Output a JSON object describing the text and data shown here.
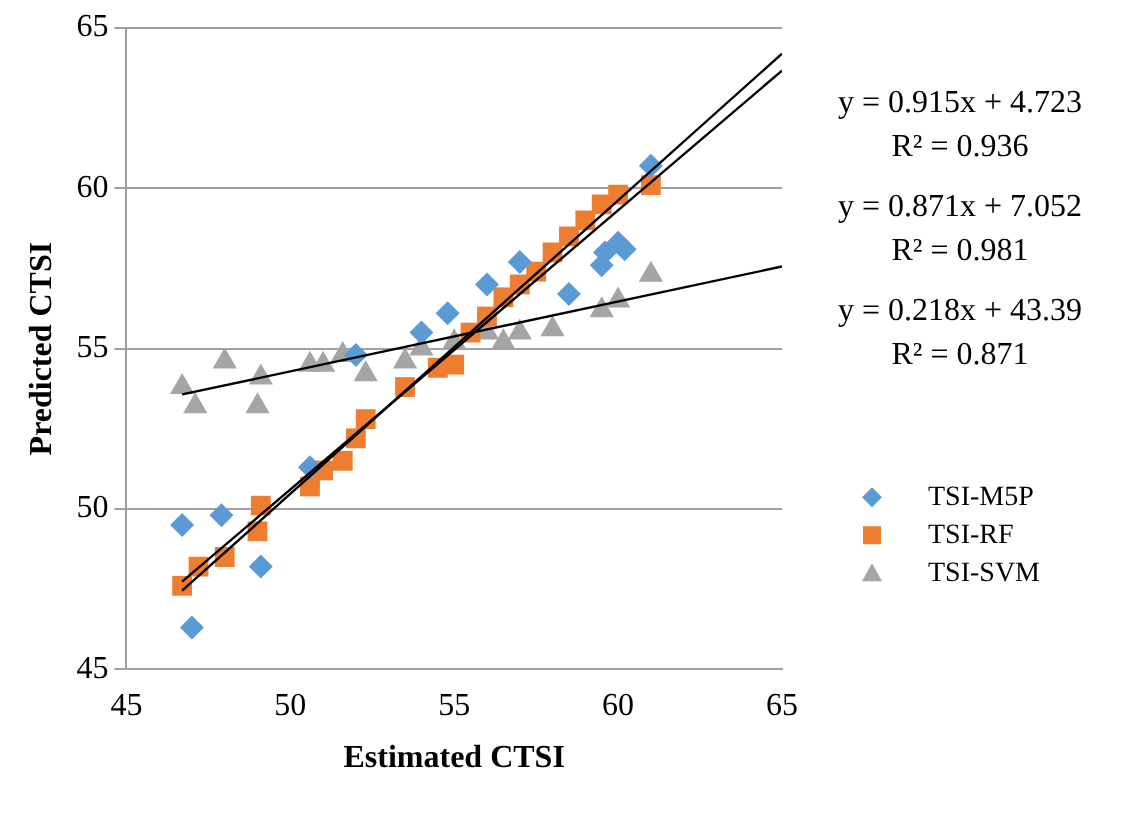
{
  "chart_data": {
    "type": "scatter",
    "xlabel": "Estimated CTSI",
    "ylabel": "Predicted CTSI",
    "xlim": [
      45,
      65
    ],
    "xticks": [
      45,
      50,
      55,
      60,
      65
    ],
    "ylim": [
      45,
      65
    ],
    "yticks": [
      45,
      50,
      55,
      60,
      65
    ],
    "grid": "y",
    "legend": "right",
    "annotations": [
      "y = 0.915x + 4.723",
      "R² = 0.936",
      "y = 0.871x + 7.052",
      "R² = 0.981",
      "y = 0.218x + 43.39",
      "R² = 0.871"
    ],
    "series": [
      {
        "name": "TSI-M5P",
        "color": "#5b9bd5",
        "marker": "diamond",
        "x": [
          46.7,
          47,
          47.9,
          49.1,
          50.6,
          52,
          54,
          54.8,
          56,
          57,
          58.5,
          59.5,
          59.6,
          60,
          60.2,
          61
        ],
        "values": [
          49.5,
          46.3,
          49.8,
          48.2,
          51.3,
          54.8,
          55.5,
          56.1,
          57,
          57.7,
          56.7,
          57.6,
          58,
          58.3,
          58.1,
          60.7
        ]
      },
      {
        "name": "TSI-RF",
        "color": "#ed7d31",
        "marker": "square",
        "x": [
          46.7,
          47.2,
          48,
          49,
          49.1,
          50.6,
          51,
          51.6,
          52,
          52.3,
          53.5,
          54.5,
          55,
          55.5,
          56,
          56.5,
          57,
          57.5,
          58,
          58.5,
          59,
          59.5,
          60,
          61
        ],
        "values": [
          47.6,
          48.2,
          48.5,
          49.3,
          50.1,
          50.7,
          51.2,
          51.5,
          52.2,
          52.8,
          53.8,
          54.4,
          54.5,
          55.5,
          56,
          56.6,
          57,
          57.4,
          58,
          58.5,
          59,
          59.5,
          59.8,
          60.1
        ]
      },
      {
        "name": "TSI-SVM",
        "color": "#a5a5a5",
        "marker": "triangle",
        "x": [
          46.7,
          47.1,
          48,
          49,
          49.1,
          50.6,
          51,
          51.6,
          52,
          52.3,
          53.5,
          54,
          55,
          56,
          56.5,
          57,
          58,
          59.5,
          60,
          61
        ],
        "values": [
          53.8,
          53.2,
          54.6,
          53.2,
          54.1,
          54.5,
          54.5,
          54.8,
          null,
          54.2,
          54.6,
          55,
          55.2,
          55.5,
          55.2,
          55.5,
          55.6,
          56.2,
          56.5,
          57.3
        ]
      },
      {
        "type": "line",
        "color": "#000000",
        "marker": "none",
        "x": [
          46.7,
          65
        ],
        "values": [
          47.45,
          64.2
        ]
      },
      {
        "type": "line",
        "color": "#000000",
        "marker": "none",
        "x": [
          46.7,
          65
        ],
        "values": [
          47.73,
          63.67
        ]
      },
      {
        "type": "line",
        "color": "#000000",
        "marker": "none",
        "x": [
          46.7,
          65
        ],
        "values": [
          53.57,
          57.56
        ]
      }
    ]
  }
}
